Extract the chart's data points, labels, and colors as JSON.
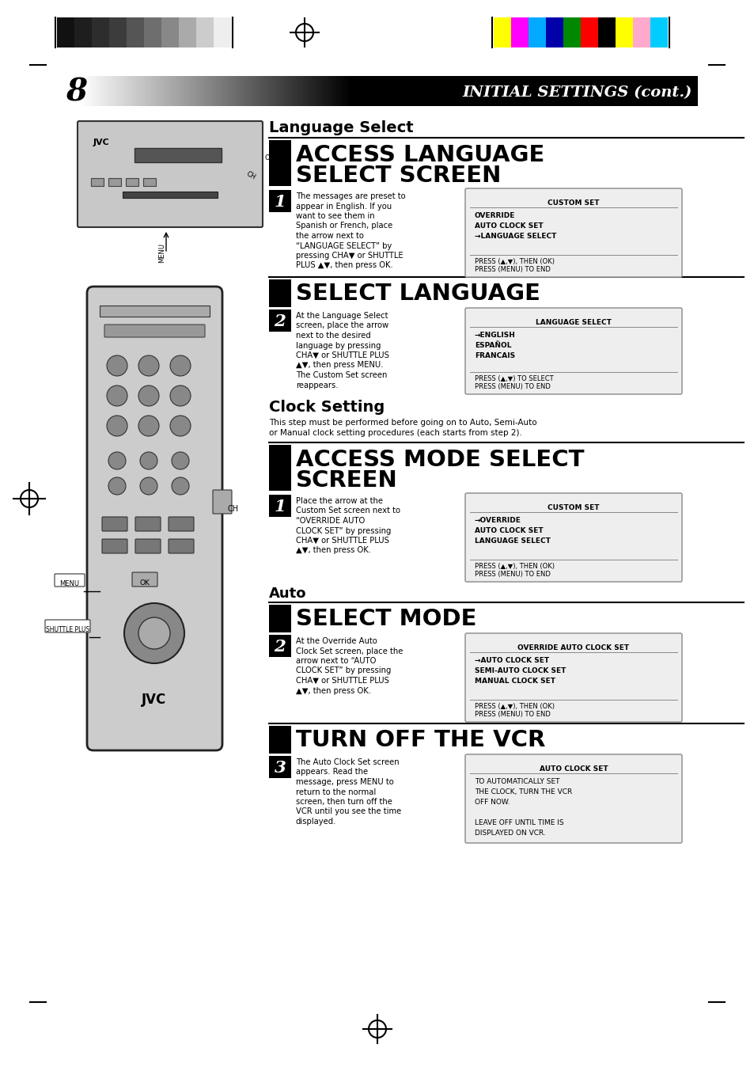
{
  "page_number": "8",
  "title": "INITIAL SETTINGS (cont.)",
  "bg_color": "#ffffff",
  "section1_heading": "Language Select",
  "section1_step1_heading_line1": "ACCESS LANGUAGE",
  "section1_step1_heading_line2": "SELECT SCREEN",
  "section1_step1_body": "The messages are preset to\nappear in English. If you\nwant to see them in\nSpanish or French, place\nthe arrow next to\n“LANGUAGE SELECT” by\npressing CHA▼ or SHUTTLE\nPLUS ▲▼, then press OK.",
  "section1_box1_title": "CUSTOM SET",
  "section1_box1_lines": [
    "OVERRIDE",
    "AUTO CLOCK SET",
    "→LANGUAGE SELECT"
  ],
  "section1_box1_footer": "PRESS (▲,▼), THEN (OK)\nPRESS (MENU) TO END",
  "section1_step2_heading": "SELECT LANGUAGE",
  "section1_step2_body": "At the Language Select\nscreen, place the arrow\nnext to the desired\nlanguage by pressing\nCHA▼ or SHUTTLE PLUS\n▲▼, then press MENU.\nThe Custom Set screen\nreappears.",
  "section1_box2_title": "LANGUAGE SELECT",
  "section1_box2_lines": [
    "→ENGLISH",
    "ESPAÑOL",
    "FRANCAIS"
  ],
  "section1_box2_footer": "PRESS (▲,▼) TO SELECT\nPRESS (MENU) TO END",
  "section2_heading": "Clock Setting",
  "section2_desc_line1": "This step must be performed before going on to Auto, Semi-Auto",
  "section2_desc_line2": "or Manual clock setting procedures (each starts from step 2).",
  "section2_step1_heading_line1": "ACCESS MODE SELECT",
  "section2_step1_heading_line2": "SCREEN",
  "section2_step1_body": "Place the arrow at the\nCustom Set screen next to\n“OVERRIDE AUTO\nCLOCK SET” by pressing\nCHA▼ or SHUTTLE PLUS\n▲▼, then press OK.",
  "section2_box1_title": "CUSTOM SET",
  "section2_box1_lines": [
    "→OVERRIDE",
    "AUTO CLOCK SET",
    "LANGUAGE SELECT"
  ],
  "section2_box1_footer": "PRESS (▲,▼), THEN (OK)\nPRESS (MENU) TO END",
  "section2_sub_heading": "Auto",
  "section2_step2_heading": "SELECT MODE",
  "section2_step2_body": "At the Override Auto\nClock Set screen, place the\narrow next to “AUTO\nCLOCK SET” by pressing\nCHA▼ or SHUTTLE PLUS\n▲▼, then press OK.",
  "section2_box2_title": "OVERRIDE AUTO CLOCK SET",
  "section2_box2_lines": [
    "→AUTO CLOCK SET",
    "SEMI-AUTO CLOCK SET",
    "MANUAL CLOCK SET"
  ],
  "section2_box2_footer": "PRESS (▲,▼), THEN (OK)\nPRESS (MENU) TO END",
  "section2_step3_heading": "TURN OFF THE VCR",
  "section2_step3_body": "The Auto Clock Set screen\nappears. Read the\nmessage, press MENU to\nreturn to the normal\nscreen, then turn off the\nVCR until you see the time\ndisplayed.",
  "section2_box3_title": "AUTO CLOCK SET",
  "section2_box3_body": "TO AUTOMATICALLY SET\nTHE CLOCK, TURN THE VCR\nOFF NOW.\n\nLEAVE OFF UNTIL TIME IS\nDISPLAYED ON VCR.",
  "color_bar_left": [
    "#111111",
    "#1e1e1e",
    "#2d2d2d",
    "#3c3c3c",
    "#555555",
    "#6e6e6e",
    "#888888",
    "#aaaaaa",
    "#cccccc",
    "#eeeeee"
  ],
  "color_bar_right": [
    "#ffff00",
    "#ff00ff",
    "#00aaff",
    "#0000aa",
    "#008800",
    "#ff0000",
    "#000000",
    "#ffff00",
    "#ffaacc",
    "#00ccff"
  ],
  "box_bg_color": "#eeeeee",
  "box_border_color": "#999999"
}
